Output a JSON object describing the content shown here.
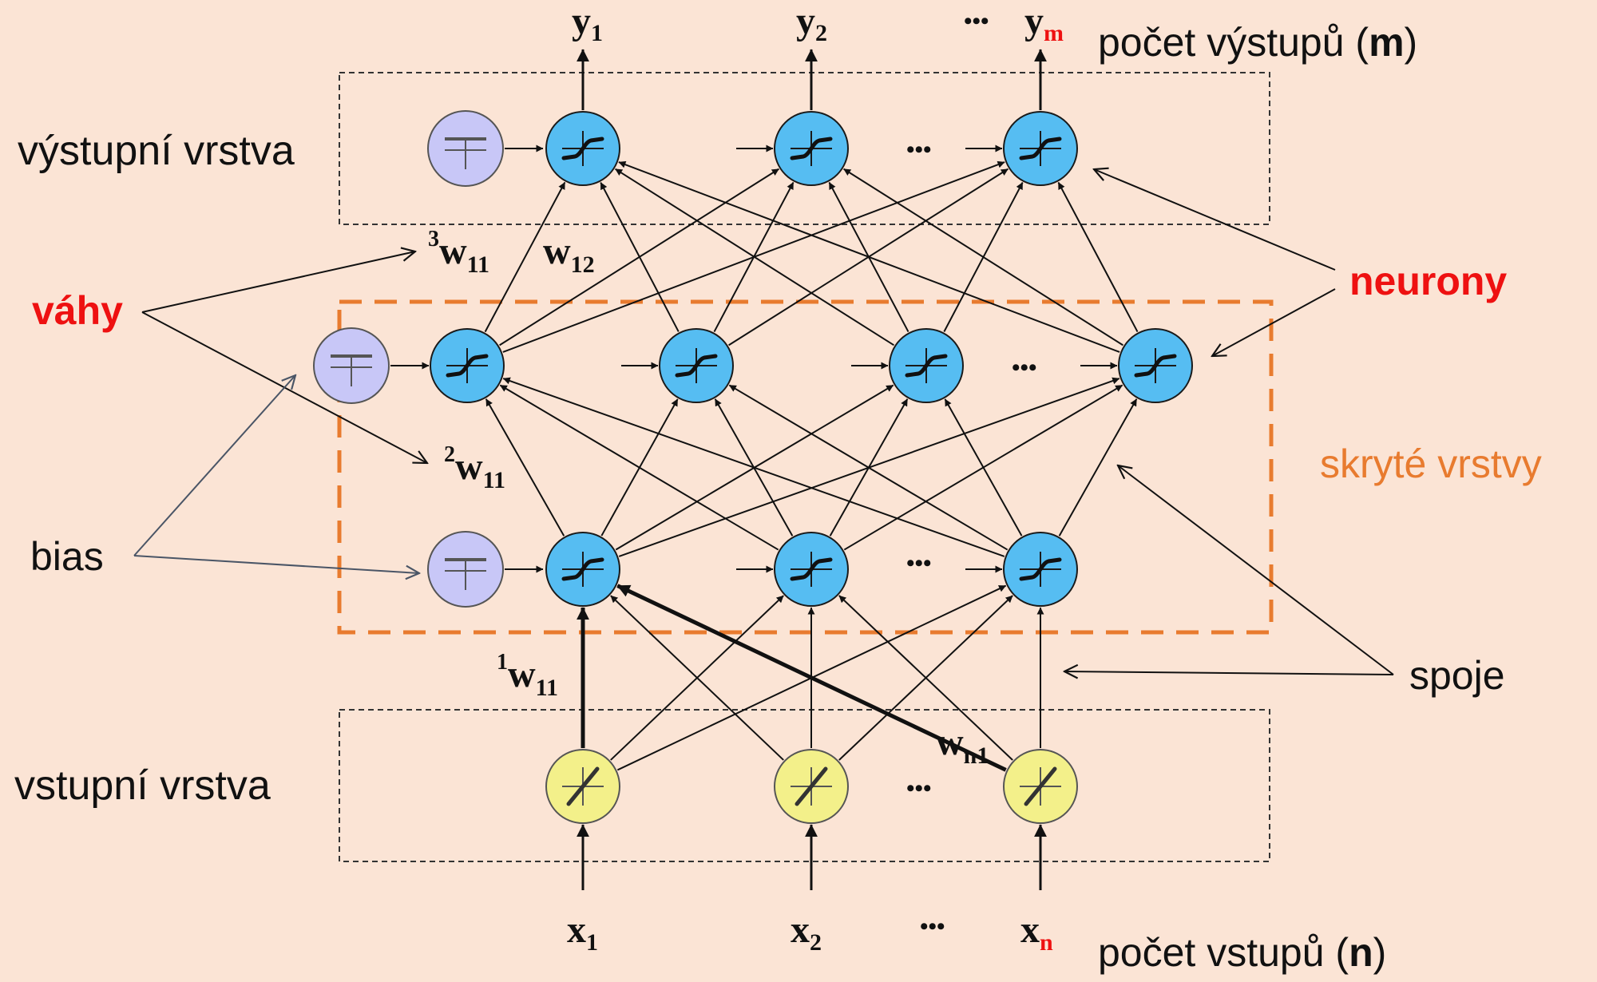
{
  "labels": {
    "output_layer": "výstupní vrstva",
    "input_layer": "vstupní vrstva",
    "hidden_layers": "skryté vrstvy",
    "weights": "váhy",
    "bias": "bias",
    "neurons": "neurony",
    "connections": "spoje",
    "output_count_text": "počet výstupů (",
    "output_count_bold": "m",
    "input_count_text": "počet vstupů (",
    "input_count_bold": "n",
    "close_paren": ")"
  },
  "symbols": {
    "y": "y",
    "x": "x",
    "w": "w",
    "sub_1": "1",
    "sub_2": "2",
    "sub_m": "m",
    "sub_n": "n",
    "sub_11": "11",
    "sub_12": "12",
    "sub_n1": "n1",
    "sup_1": "1",
    "sup_2": "2",
    "sup_3": "3",
    "ellipsis": "•••"
  },
  "colors": {
    "background": "#fbe4d5",
    "neuron_fill": "#56bdf2",
    "bias_fill": "#c8c7f7",
    "input_fill": "#f3f08a",
    "hidden_box": "#e87b2f",
    "label_red": "#ee1111",
    "label_orange": "#e87b2f"
  },
  "icons": {
    "neuron": "sigmoid-activation-icon",
    "bias": "constant-bias-icon",
    "input": "linear-activation-icon"
  }
}
